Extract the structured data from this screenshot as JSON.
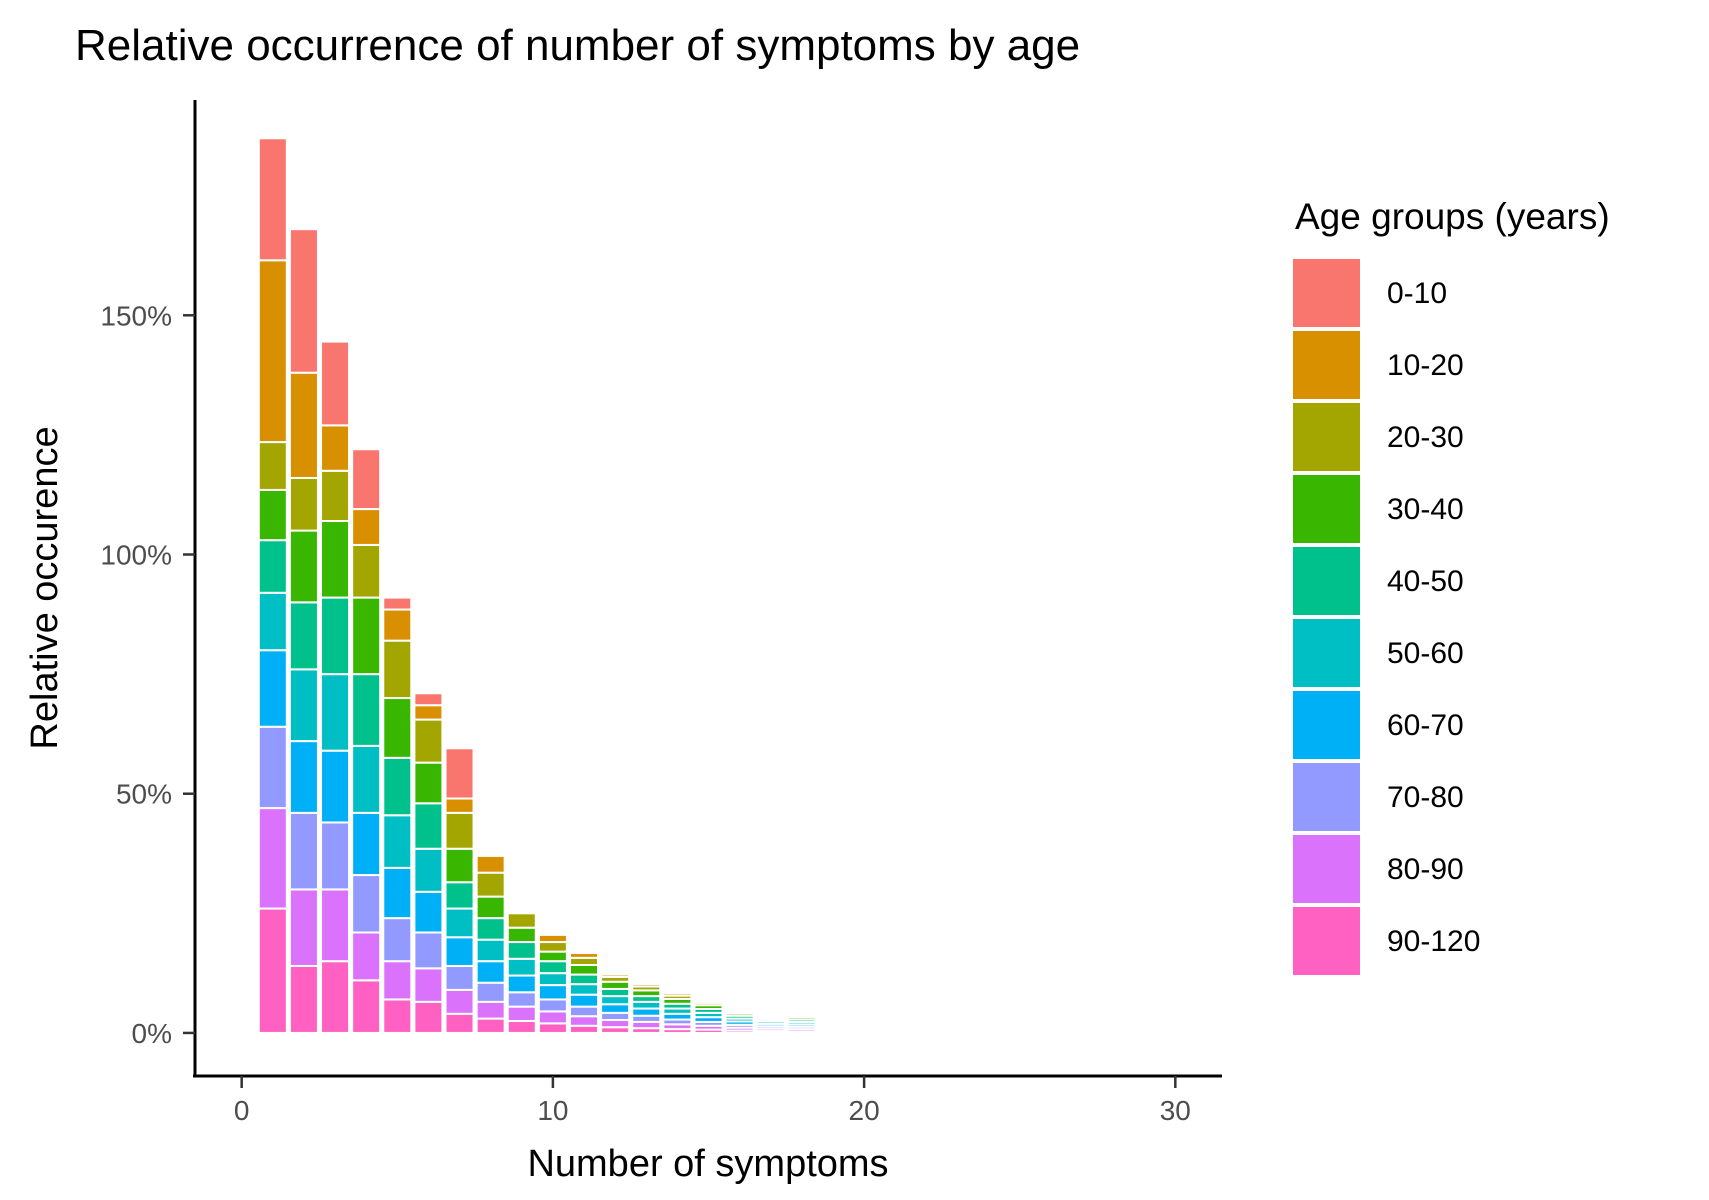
{
  "chart_data": {
    "type": "bar",
    "stacked": true,
    "title": "Relative occurrence of number of symptoms by age",
    "xlabel": "Number of symptoms",
    "ylabel": "Relative occurence",
    "xlim": [
      -1.5,
      31.5
    ],
    "ylim": [
      -9,
      195
    ],
    "x_ticks": [
      0,
      10,
      20,
      30
    ],
    "x_tick_labels": [
      "0",
      "10",
      "20",
      "30"
    ],
    "y_ticks": [
      0,
      50,
      100,
      150
    ],
    "y_tick_labels": [
      "0%",
      "50%",
      "100%",
      "150%"
    ],
    "grid": false,
    "legend": {
      "title": "Age groups (years)",
      "position": "right"
    },
    "x": [
      1,
      2,
      3,
      4,
      5,
      6,
      7,
      8,
      9,
      10,
      11,
      12,
      13,
      14,
      15,
      16,
      17,
      18,
      19,
      20,
      21,
      22,
      23,
      24,
      25,
      26,
      27,
      28,
      29
    ],
    "series": [
      {
        "name": "90-120",
        "color": "#FF61C3",
        "values": [
          26,
          14,
          15,
          11,
          7,
          6.5,
          4,
          3,
          2.5,
          2,
          1.5,
          1.2,
          1,
          0.8,
          0.7,
          0.5,
          0.4,
          0.3,
          0.3,
          0.3,
          0.2,
          0.2,
          0.2,
          0.2,
          0,
          0.1,
          0.1,
          0.1,
          0.2
        ]
      },
      {
        "name": "80-90",
        "color": "#DB72FB",
        "values": [
          21,
          16,
          15,
          10,
          8,
          7,
          5,
          3.5,
          3,
          2.5,
          2,
          1.5,
          1.3,
          1,
          0.8,
          0.6,
          0.5,
          0.5,
          0.4,
          0.4,
          0.3,
          0.3,
          0.3,
          0.2,
          0,
          0.2,
          0.2,
          0.1,
          0.2
        ]
      },
      {
        "name": "70-80",
        "color": "#939AFF",
        "values": [
          17,
          16,
          14,
          12,
          9,
          7.5,
          5,
          4,
          3,
          2.5,
          2,
          1.5,
          1.3,
          1,
          0.8,
          0.6,
          0.5,
          0.5,
          0.4,
          0.4,
          0.3,
          0.2,
          0.2,
          0.2,
          0,
          0.1,
          0.2,
          0.1,
          0.2
        ]
      },
      {
        "name": "60-70",
        "color": "#00B0F6",
        "values": [
          16,
          15,
          15,
          13,
          10.5,
          8.5,
          6,
          4.5,
          3.5,
          3,
          2.5,
          1.8,
          1.5,
          1.2,
          1,
          0.7,
          0.5,
          0.5,
          0.4,
          0.4,
          0.3,
          0.3,
          0.2,
          0.2,
          0.1,
          0.1,
          0.2,
          0.1,
          0.1
        ]
      },
      {
        "name": "50-60",
        "color": "#00BFC4",
        "values": [
          12,
          15,
          16,
          14,
          11,
          9,
          6,
          4.5,
          3.5,
          2.5,
          2.2,
          1.7,
          1.4,
          1.1,
          0.9,
          0.6,
          0.5,
          0.5,
          0.4,
          0.4,
          0.3,
          0.2,
          0.2,
          0.2,
          0.1,
          0.1,
          0.1,
          0,
          0.1
        ]
      },
      {
        "name": "40-50",
        "color": "#00C08B",
        "values": [
          11,
          14,
          16,
          15,
          12,
          9.5,
          5.5,
          4.5,
          3.5,
          2.5,
          2,
          1.5,
          1.2,
          1,
          0.8,
          0.6,
          0.4,
          0.5,
          0.3,
          0.3,
          0.3,
          0.2,
          0.2,
          0.1,
          0.1,
          0.1,
          0.1,
          0,
          0
        ]
      },
      {
        "name": "30-40",
        "color": "#39B600",
        "values": [
          10.5,
          15,
          16,
          16,
          12.5,
          8.5,
          7,
          4.5,
          3,
          2,
          2,
          1.5,
          1.2,
          1,
          0.8,
          0.5,
          0.4,
          0.5,
          0.3,
          0.3,
          0.3,
          0.2,
          0.2,
          0.1,
          0,
          0.1,
          0,
          0,
          0
        ]
      },
      {
        "name": "20-30",
        "color": "#A3A500",
        "values": [
          10,
          11,
          10.5,
          11,
          12,
          9,
          7.5,
          5,
          3,
          2,
          1.5,
          1,
          0.8,
          0.7,
          0.5,
          0.3,
          0.3,
          0.3,
          0.2,
          0.2,
          0.2,
          0.1,
          0.1,
          0.1,
          0,
          0.1,
          0,
          0,
          0
        ]
      },
      {
        "name": "10-20",
        "color": "#D89000",
        "values": [
          38,
          22,
          9.5,
          7.5,
          6.5,
          3,
          3,
          3.5,
          0,
          1.5,
          1,
          0.5,
          0.5,
          0.5,
          0.3,
          0.1,
          0.1,
          0.3,
          0.3,
          0.2,
          0.1,
          0.3,
          0.2,
          0.1,
          0,
          0.2,
          0.1,
          0,
          0
        ]
      },
      {
        "name": "0-10",
        "color": "#F8766D",
        "values": [
          25.5,
          30,
          17.5,
          12.5,
          2.5,
          2.5,
          10.5,
          0,
          0,
          0,
          0,
          0,
          0,
          0,
          0,
          0,
          0,
          0,
          0,
          0,
          0,
          0,
          0,
          0,
          0,
          0,
          0,
          0,
          0
        ]
      }
    ]
  }
}
